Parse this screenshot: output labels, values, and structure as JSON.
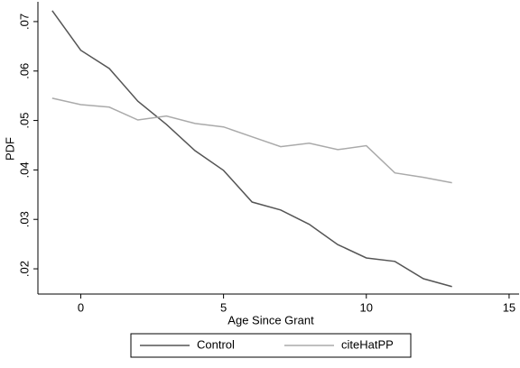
{
  "chart_data": {
    "type": "line",
    "x_label": "Age Since Grant",
    "y_label": "PDF",
    "x": [
      -1,
      0,
      1,
      2,
      3,
      4,
      5,
      6,
      7,
      8,
      9,
      10,
      11,
      12,
      13
    ],
    "series": [
      {
        "name": "Control",
        "color": "#555555",
        "values": [
          0.0722,
          0.0642,
          0.0605,
          0.0539,
          0.0492,
          0.0439,
          0.0399,
          0.0335,
          0.0319,
          0.029,
          0.0249,
          0.0222,
          0.0215,
          0.018,
          0.0164
        ]
      },
      {
        "name": "citeHatPP",
        "color": "#aaaaaa",
        "values": [
          0.0545,
          0.0532,
          0.0527,
          0.0501,
          0.0509,
          0.0494,
          0.0487,
          0.0467,
          0.0447,
          0.0454,
          0.0441,
          0.0449,
          0.0394,
          0.0385,
          0.0374
        ]
      }
    ],
    "xlim": [
      -1.5,
      15.35
    ],
    "xticks": [
      0,
      5,
      10,
      15
    ],
    "ylim": [
      0.0149,
      0.074
    ],
    "yticks": [
      {
        "value": 0.02,
        "label": ".02"
      },
      {
        "value": 0.03,
        "label": ".03"
      },
      {
        "value": 0.04,
        "label": ".04"
      },
      {
        "value": 0.05,
        "label": ".05"
      },
      {
        "value": 0.06,
        "label": ".06"
      },
      {
        "value": 0.07,
        "label": ".07"
      }
    ],
    "legend": "bottom"
  }
}
